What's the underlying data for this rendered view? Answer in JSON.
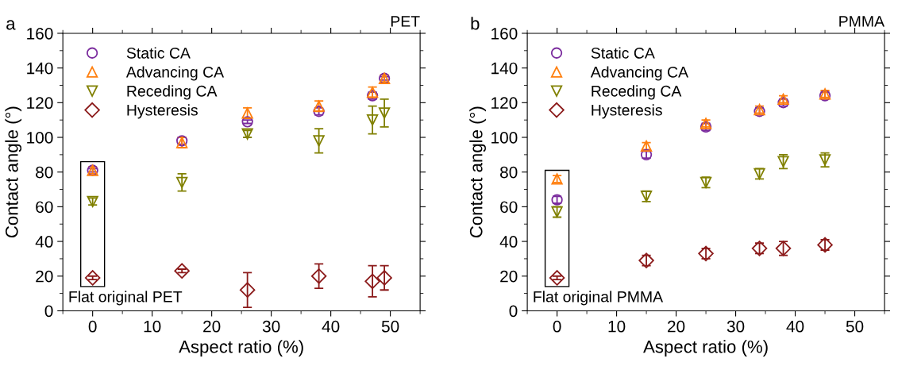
{
  "chart_data": [
    {
      "type": "scatter",
      "title": "PET",
      "xlabel": "Aspect ratio (%)",
      "ylabel": "Contact angle (°)",
      "annotations": [
        "a",
        "Flat original PET"
      ],
      "xlim": [
        -5,
        55
      ],
      "xticks": [
        0,
        10,
        20,
        30,
        40,
        50
      ],
      "ylim": [
        0,
        160
      ],
      "yticks": [
        0,
        20,
        40,
        60,
        80,
        100,
        120,
        140,
        160
      ],
      "legend": "top left",
      "grid": false,
      "series": [
        {
          "name": "Static CA",
          "color": "#7b2c9e",
          "marker": "circle",
          "x": [
            0,
            15,
            26,
            38,
            47,
            49
          ],
          "values": [
            81,
            98,
            109,
            115,
            124,
            134
          ],
          "errors": [
            1,
            2,
            1,
            2,
            2,
            1
          ]
        },
        {
          "name": "Advancing CA",
          "color": "#ff7f0e",
          "marker": "triangle",
          "x": [
            0,
            15,
            26,
            38,
            47,
            49
          ],
          "values": [
            81,
            97,
            114,
            118,
            126,
            134
          ],
          "errors": [
            2,
            3,
            3,
            3,
            3,
            2
          ]
        },
        {
          "name": "Receding CA",
          "color": "#808000",
          "marker": "triangle_down",
          "x": [
            0,
            15,
            26,
            38,
            47,
            49
          ],
          "values": [
            63,
            74,
            102,
            98,
            110,
            114
          ],
          "errors": [
            2,
            5,
            2,
            7,
            8,
            8
          ]
        },
        {
          "name": "Hysteresis",
          "color": "#8b1a1a",
          "marker": "diamond",
          "x": [
            0,
            15,
            26,
            38,
            47,
            49
          ],
          "values": [
            19,
            23,
            12,
            20,
            17,
            19
          ],
          "errors": [
            1,
            1,
            10,
            7,
            9,
            7
          ]
        }
      ]
    },
    {
      "type": "scatter",
      "title": "PMMA",
      "xlabel": "Aspect ratio (%)",
      "ylabel": "Contact angle (°)",
      "annotations": [
        "b",
        "Flat original PMMA"
      ],
      "xlim": [
        -5,
        55
      ],
      "xticks": [
        0,
        10,
        20,
        30,
        40,
        50
      ],
      "ylim": [
        0,
        160
      ],
      "yticks": [
        0,
        20,
        40,
        60,
        80,
        100,
        120,
        140,
        160
      ],
      "legend": "top left",
      "grid": false,
      "series": [
        {
          "name": "Static CA",
          "color": "#7b2c9e",
          "marker": "circle",
          "x": [
            0,
            15,
            25,
            34,
            38,
            45
          ],
          "values": [
            64,
            90,
            106,
            115,
            120,
            124
          ],
          "errors": [
            2,
            2,
            2,
            2,
            2,
            2
          ]
        },
        {
          "name": "Advancing CA",
          "color": "#ff7f0e",
          "marker": "triangle",
          "x": [
            0,
            15,
            25,
            34,
            38,
            45
          ],
          "values": [
            76,
            95,
            108,
            116,
            122,
            125
          ],
          "errors": [
            2,
            2,
            2,
            2,
            2,
            2
          ]
        },
        {
          "name": "Receding CA",
          "color": "#808000",
          "marker": "triangle_down",
          "x": [
            0,
            15,
            25,
            34,
            38,
            45
          ],
          "values": [
            57,
            66,
            74,
            79,
            86,
            87
          ],
          "errors": [
            3,
            3,
            3,
            3,
            4,
            4
          ]
        },
        {
          "name": "Hysteresis",
          "color": "#8b1a1a",
          "marker": "diamond",
          "x": [
            0,
            15,
            25,
            34,
            38,
            45
          ],
          "values": [
            19,
            29,
            33,
            36,
            36,
            38
          ],
          "errors": [
            1,
            3,
            3,
            3,
            4,
            3
          ]
        }
      ]
    }
  ]
}
